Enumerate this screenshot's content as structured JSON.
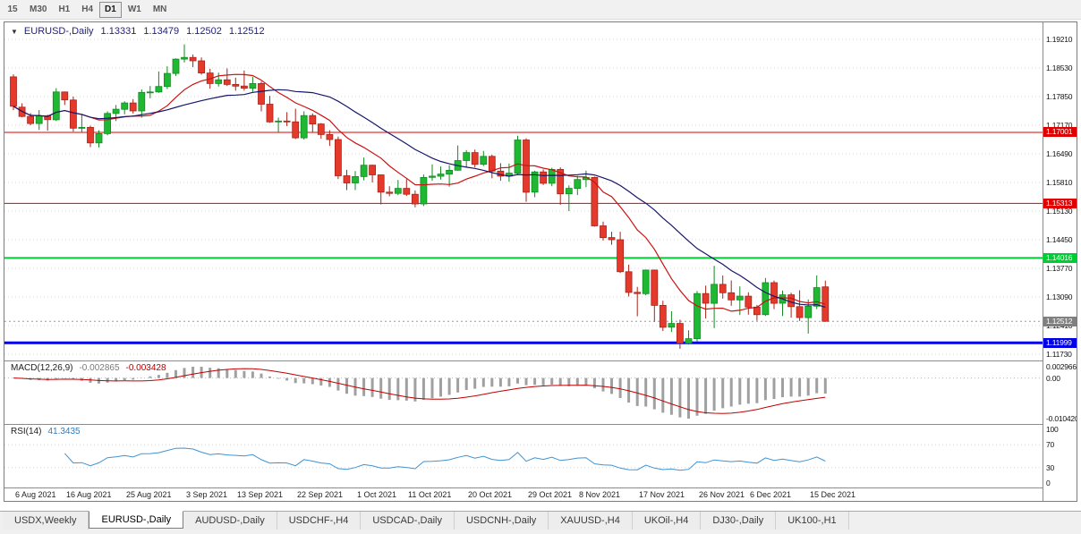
{
  "toolbar": {
    "timeframes": [
      {
        "label": "15",
        "active": false
      },
      {
        "label": "M30",
        "active": false
      },
      {
        "label": "H1",
        "active": false
      },
      {
        "label": "H4",
        "active": false
      },
      {
        "label": "D1",
        "active": true
      },
      {
        "label": "W1",
        "active": false
      },
      {
        "label": "MN",
        "active": false
      }
    ]
  },
  "chart": {
    "title": {
      "symbol_period": "EURUSD-,Daily",
      "open": "1.13331",
      "high": "1.13479",
      "low": "1.12502",
      "close": "1.12512"
    }
  },
  "chart_data": {
    "type": "candlestick",
    "symbol": "EURUSD-",
    "period": "Daily",
    "price_axis": {
      "ticks": [
        "1.19210",
        "1.18530",
        "1.17850",
        "1.17170",
        "1.16490",
        "1.15810",
        "1.15130",
        "1.14450",
        "1.13770",
        "1.13090",
        "1.12410",
        "1.11730"
      ]
    },
    "levels": [
      {
        "value": 1.17001,
        "label": "1.17001",
        "color": "#e00000",
        "thickness": 1
      },
      {
        "value": 1.15313,
        "label": "1.15313",
        "color": "#e00000",
        "thickness": 1
      },
      {
        "value": 1.14016,
        "label": "1.14016",
        "color": "#00cc33",
        "thickness": 2
      },
      {
        "value": 1.11999,
        "label": "1.11999",
        "color": "#0000e6",
        "thickness": 3
      }
    ],
    "current_price": {
      "value": 1.12512,
      "label": "1.12512"
    },
    "colors": {
      "up_fill": "#1fb832",
      "up_border": "#128a22",
      "down_fill": "#e5392b",
      "down_border": "#a8231a",
      "ma_fast": "#cc1111",
      "ma_slow": "#16166a",
      "macd_hist": "#a0a0a0",
      "macd_signal": "#c00000",
      "rsi_line": "#3f93d2"
    },
    "moving_averages": [
      {
        "name": "ma-fast",
        "period": 10,
        "color": "#cc1111"
      },
      {
        "name": "ma-slow",
        "period": 21,
        "color": "#16166a"
      }
    ],
    "macd": {
      "label": "MACD(12,26,9)",
      "value_main": "-0.002865",
      "value_signal": "-0.003428",
      "params": {
        "fast": 12,
        "slow": 26,
        "signal": 9
      },
      "axis": [
        "0.002966",
        "0.00",
        "-0.010420"
      ]
    },
    "rsi": {
      "label": "RSI(14)",
      "value": "41.3435",
      "period": 14,
      "levels": [
        70,
        30
      ],
      "axis": [
        "100",
        "70",
        "30",
        "0"
      ]
    },
    "date_labels": [
      {
        "text": "6 Aug 2021",
        "index": 0
      },
      {
        "text": "16 Aug 2021",
        "index": 6
      },
      {
        "text": "25 Aug 2021",
        "index": 13
      },
      {
        "text": "3 Sep 2021",
        "index": 20
      },
      {
        "text": "13 Sep 2021",
        "index": 26
      },
      {
        "text": "22 Sep 2021",
        "index": 33
      },
      {
        "text": "1 Oct 2021",
        "index": 40
      },
      {
        "text": "11 Oct 2021",
        "index": 46
      },
      {
        "text": "20 Oct 2021",
        "index": 53
      },
      {
        "text": "29 Oct 2021",
        "index": 60
      },
      {
        "text": "8 Nov 2021",
        "index": 66
      },
      {
        "text": "17 Nov 2021",
        "index": 73
      },
      {
        "text": "26 Nov 2021",
        "index": 80
      },
      {
        "text": "6 Dec 2021",
        "index": 86
      },
      {
        "text": "15 Dec 2021",
        "index": 93
      }
    ],
    "candles": [
      [
        "6 Aug 2021",
        1.1832,
        1.1838,
        1.1753,
        1.1762
      ],
      [
        "9 Aug 2021",
        1.176,
        1.1769,
        1.1736,
        1.1738
      ],
      [
        "10 Aug 2021",
        1.1738,
        1.1746,
        1.1717,
        1.1721
      ],
      [
        "11 Aug 2021",
        1.1721,
        1.1753,
        1.1706,
        1.1739
      ],
      [
        "12 Aug 2021",
        1.1739,
        1.1742,
        1.1704,
        1.173
      ],
      [
        "13 Aug 2021",
        1.173,
        1.1805,
        1.1727,
        1.1796
      ],
      [
        "16 Aug 2021",
        1.1796,
        1.1797,
        1.1765,
        1.1777
      ],
      [
        "17 Aug 2021",
        1.1777,
        1.1785,
        1.1702,
        1.171
      ],
      [
        "18 Aug 2021",
        1.171,
        1.1742,
        1.17,
        1.1712
      ],
      [
        "19 Aug 2021",
        1.1712,
        1.1716,
        1.1665,
        1.1675
      ],
      [
        "20 Aug 2021",
        1.1675,
        1.1705,
        1.1664,
        1.1697
      ],
      [
        "23 Aug 2021",
        1.1697,
        1.175,
        1.1693,
        1.1745
      ],
      [
        "24 Aug 2021",
        1.1745,
        1.1765,
        1.1727,
        1.1755
      ],
      [
        "25 Aug 2021",
        1.1755,
        1.1774,
        1.1743,
        1.177
      ],
      [
        "26 Aug 2021",
        1.177,
        1.1779,
        1.1745,
        1.1751
      ],
      [
        "27 Aug 2021",
        1.1751,
        1.1802,
        1.1735,
        1.1795
      ],
      [
        "30 Aug 2021",
        1.1795,
        1.181,
        1.1781,
        1.1796
      ],
      [
        "31 Aug 2021",
        1.1796,
        1.1845,
        1.1794,
        1.1809
      ],
      [
        "1 Sep 2021",
        1.1809,
        1.1857,
        1.1803,
        1.184
      ],
      [
        "2 Sep 2021",
        1.184,
        1.1876,
        1.1834,
        1.1874
      ],
      [
        "3 Sep 2021",
        1.1874,
        1.1909,
        1.1866,
        1.1878
      ],
      [
        "6 Sep 2021",
        1.1878,
        1.1885,
        1.1855,
        1.187
      ],
      [
        "7 Sep 2021",
        1.187,
        1.1878,
        1.1837,
        1.1841
      ],
      [
        "8 Sep 2021",
        1.1841,
        1.1851,
        1.1804,
        1.1816
      ],
      [
        "9 Sep 2021",
        1.1816,
        1.1842,
        1.1809,
        1.1825
      ],
      [
        "10 Sep 2021",
        1.1825,
        1.1852,
        1.181,
        1.1814
      ],
      [
        "13 Sep 2021",
        1.1814,
        1.183,
        1.1799,
        1.181
      ],
      [
        "14 Sep 2021",
        1.181,
        1.1847,
        1.1799,
        1.1805
      ],
      [
        "15 Sep 2021",
        1.1805,
        1.1832,
        1.1796,
        1.1816
      ],
      [
        "16 Sep 2021",
        1.1816,
        1.1821,
        1.175,
        1.1767
      ],
      [
        "17 Sep 2021",
        1.1767,
        1.1787,
        1.1723,
        1.1725
      ],
      [
        "20 Sep 2021",
        1.1725,
        1.1735,
        1.17,
        1.1727
      ],
      [
        "21 Sep 2021",
        1.1727,
        1.1748,
        1.1715,
        1.1725
      ],
      [
        "22 Sep 2021",
        1.1725,
        1.1756,
        1.1684,
        1.1687
      ],
      [
        "23 Sep 2021",
        1.1687,
        1.175,
        1.1683,
        1.174
      ],
      [
        "24 Sep 2021",
        1.174,
        1.1745,
        1.1701,
        1.172
      ],
      [
        "27 Sep 2021",
        1.172,
        1.1722,
        1.1685,
        1.1695
      ],
      [
        "28 Sep 2021",
        1.1695,
        1.1705,
        1.1668,
        1.1683
      ],
      [
        "29 Sep 2021",
        1.1683,
        1.169,
        1.1589,
        1.1597
      ],
      [
        "30 Sep 2021",
        1.1597,
        1.1611,
        1.1563,
        1.158
      ],
      [
        "1 Oct 2021",
        1.158,
        1.1608,
        1.1563,
        1.1595
      ],
      [
        "4 Oct 2021",
        1.1595,
        1.164,
        1.1586,
        1.1622
      ],
      [
        "5 Oct 2021",
        1.1622,
        1.1623,
        1.1581,
        1.1599
      ],
      [
        "6 Oct 2021",
        1.1599,
        1.16,
        1.1529,
        1.1558
      ],
      [
        "7 Oct 2021",
        1.1558,
        1.1572,
        1.1548,
        1.1555
      ],
      [
        "8 Oct 2021",
        1.1555,
        1.1587,
        1.1551,
        1.1567
      ],
      [
        "11 Oct 2021",
        1.1567,
        1.1589,
        1.1549,
        1.1553
      ],
      [
        "12 Oct 2021",
        1.1553,
        1.1562,
        1.1522,
        1.153
      ],
      [
        "13 Oct 2021",
        1.153,
        1.16,
        1.1525,
        1.1593
      ],
      [
        "14 Oct 2021",
        1.1593,
        1.1624,
        1.1585,
        1.1596
      ],
      [
        "15 Oct 2021",
        1.1596,
        1.1619,
        1.1588,
        1.1601
      ],
      [
        "18 Oct 2021",
        1.1601,
        1.1622,
        1.1571,
        1.161
      ],
      [
        "19 Oct 2021",
        1.161,
        1.1669,
        1.1609,
        1.1633
      ],
      [
        "20 Oct 2021",
        1.1633,
        1.1658,
        1.1617,
        1.1652
      ],
      [
        "21 Oct 2021",
        1.1652,
        1.1659,
        1.1617,
        1.1624
      ],
      [
        "22 Oct 2021",
        1.1624,
        1.1656,
        1.162,
        1.1643
      ],
      [
        "25 Oct 2021",
        1.1643,
        1.1647,
        1.1591,
        1.1608
      ],
      [
        "26 Oct 2021",
        1.1608,
        1.1627,
        1.1585,
        1.1596
      ],
      [
        "27 Oct 2021",
        1.1596,
        1.1626,
        1.1583,
        1.1603
      ],
      [
        "28 Oct 2021",
        1.1603,
        1.1692,
        1.1601,
        1.1682
      ],
      [
        "29 Oct 2021",
        1.1682,
        1.1686,
        1.1535,
        1.1558
      ],
      [
        "1 Nov 2021",
        1.1558,
        1.1609,
        1.1546,
        1.1606
      ],
      [
        "2 Nov 2021",
        1.1606,
        1.1612,
        1.1575,
        1.1579
      ],
      [
        "3 Nov 2021",
        1.1579,
        1.1616,
        1.1572,
        1.1612
      ],
      [
        "4 Nov 2021",
        1.1612,
        1.1617,
        1.1528,
        1.1554
      ],
      [
        "5 Nov 2021",
        1.1554,
        1.1574,
        1.1513,
        1.1567
      ],
      [
        "8 Nov 2021",
        1.1567,
        1.1597,
        1.1551,
        1.1588
      ],
      [
        "9 Nov 2021",
        1.1588,
        1.1609,
        1.157,
        1.1593
      ],
      [
        "10 Nov 2021",
        1.1593,
        1.1595,
        1.1476,
        1.1478
      ],
      [
        "11 Nov 2021",
        1.1478,
        1.1488,
        1.1443,
        1.145
      ],
      [
        "12 Nov 2021",
        1.145,
        1.1464,
        1.1433,
        1.1445
      ],
      [
        "15 Nov 2021",
        1.1445,
        1.1464,
        1.1366,
        1.1369
      ],
      [
        "16 Nov 2021",
        1.1369,
        1.1386,
        1.131,
        1.132
      ],
      [
        "17 Nov 2021",
        1.132,
        1.1333,
        1.1263,
        1.1317
      ],
      [
        "18 Nov 2021",
        1.1317,
        1.1374,
        1.1313,
        1.1373
      ],
      [
        "19 Nov 2021",
        1.1373,
        1.1374,
        1.125,
        1.1289
      ],
      [
        "22 Nov 2021",
        1.1289,
        1.13,
        1.1228,
        1.1237
      ],
      [
        "23 Nov 2021",
        1.1237,
        1.1275,
        1.1226,
        1.1246
      ],
      [
        "24 Nov 2021",
        1.1246,
        1.1255,
        1.1186,
        1.1199
      ],
      [
        "25 Nov 2021",
        1.1199,
        1.123,
        1.1196,
        1.121
      ],
      [
        "26 Nov 2021",
        1.121,
        1.1323,
        1.1203,
        1.1317
      ],
      [
        "29 Nov 2021",
        1.1317,
        1.1336,
        1.1258,
        1.1294
      ],
      [
        "30 Nov 2021",
        1.1294,
        1.1383,
        1.1235,
        1.1339
      ],
      [
        "1 Dec 2021",
        1.1339,
        1.136,
        1.1305,
        1.1319
      ],
      [
        "2 Dec 2021",
        1.1319,
        1.1348,
        1.1288,
        1.1302
      ],
      [
        "3 Dec 2021",
        1.1302,
        1.1334,
        1.1266,
        1.1311
      ],
      [
        "6 Dec 2021",
        1.1311,
        1.132,
        1.1267,
        1.1285
      ],
      [
        "7 Dec 2021",
        1.1285,
        1.129,
        1.1253,
        1.1267
      ],
      [
        "8 Dec 2021",
        1.1267,
        1.1354,
        1.1264,
        1.1343
      ],
      [
        "9 Dec 2021",
        1.1343,
        1.1348,
        1.128,
        1.1294
      ],
      [
        "10 Dec 2021",
        1.1294,
        1.1324,
        1.1264,
        1.1314
      ],
      [
        "13 Dec 2021",
        1.1314,
        1.1319,
        1.126,
        1.1286
      ],
      [
        "14 Dec 2021",
        1.1286,
        1.1325,
        1.1252,
        1.126
      ],
      [
        "15 Dec 2021",
        1.126,
        1.1303,
        1.1222,
        1.1287
      ],
      [
        "16 Dec 2021",
        1.1287,
        1.136,
        1.128,
        1.1331
      ],
      [
        "17 Dec 2021",
        1.13331,
        1.13479,
        1.12502,
        1.12512
      ]
    ]
  },
  "tabs": [
    {
      "label": "USDX,Weekly",
      "active": false
    },
    {
      "label": "EURUSD-,Daily",
      "active": true
    },
    {
      "label": "AUDUSD-,Daily",
      "active": false
    },
    {
      "label": "USDCHF-,H4",
      "active": false
    },
    {
      "label": "USDCAD-,Daily",
      "active": false
    },
    {
      "label": "USDCNH-,Daily",
      "active": false
    },
    {
      "label": "XAUUSD-,H4",
      "active": false
    },
    {
      "label": "UKOil-,H4",
      "active": false
    },
    {
      "label": "DJ30-,Daily",
      "active": false
    },
    {
      "label": "UK100-,H1",
      "active": false
    }
  ]
}
